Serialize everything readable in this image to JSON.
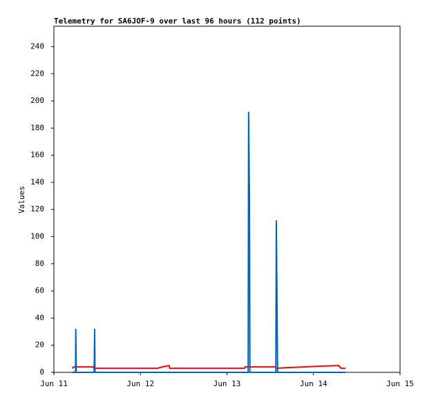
{
  "chart_data": {
    "type": "line",
    "title": "Telemetry for SA6JOF-9 over last 96 hours (112 points)",
    "y_label": "Values",
    "xlim": [
      0,
      4
    ],
    "xticks": [
      {
        "value": 0,
        "label": "Jun 11"
      },
      {
        "value": 1,
        "label": "Jun 12"
      },
      {
        "value": 2,
        "label": "Jun 13"
      },
      {
        "value": 3,
        "label": "Jun 14"
      },
      {
        "value": 4,
        "label": "Jun 15"
      }
    ],
    "ylim": [
      0,
      255
    ],
    "yticks": [
      0,
      20,
      40,
      60,
      80,
      100,
      120,
      140,
      160,
      180,
      200,
      220,
      240
    ],
    "series": [
      {
        "color": "#000000",
        "x": [
          0.21,
          3.37
        ],
        "values": [
          0,
          0
        ]
      },
      {
        "color": "#ff0000",
        "x": [
          0.21,
          0.23,
          0.455,
          0.46,
          1.2,
          1.22,
          1.33,
          1.34,
          2.2,
          2.21,
          2.56,
          2.57,
          2.69,
          2.89,
          3.05,
          3.29,
          3.32,
          3.37
        ],
        "values": [
          3,
          4,
          4,
          3,
          3,
          3.5,
          5,
          3,
          3,
          4,
          4,
          3,
          3.5,
          4,
          4.5,
          5,
          3,
          3
        ]
      },
      {
        "color": "#0066bb",
        "x": [
          0.21,
          0.25,
          0.253,
          0.258,
          0.465,
          0.468,
          0.471,
          0.475,
          2.245,
          2.25,
          2.26,
          2.265,
          2.565,
          2.57,
          2.578,
          2.585,
          3.37
        ],
        "values": [
          0,
          0,
          32,
          0,
          0,
          16,
          32,
          0,
          0,
          192,
          128,
          0,
          0,
          112,
          56,
          0,
          0
        ]
      }
    ]
  }
}
